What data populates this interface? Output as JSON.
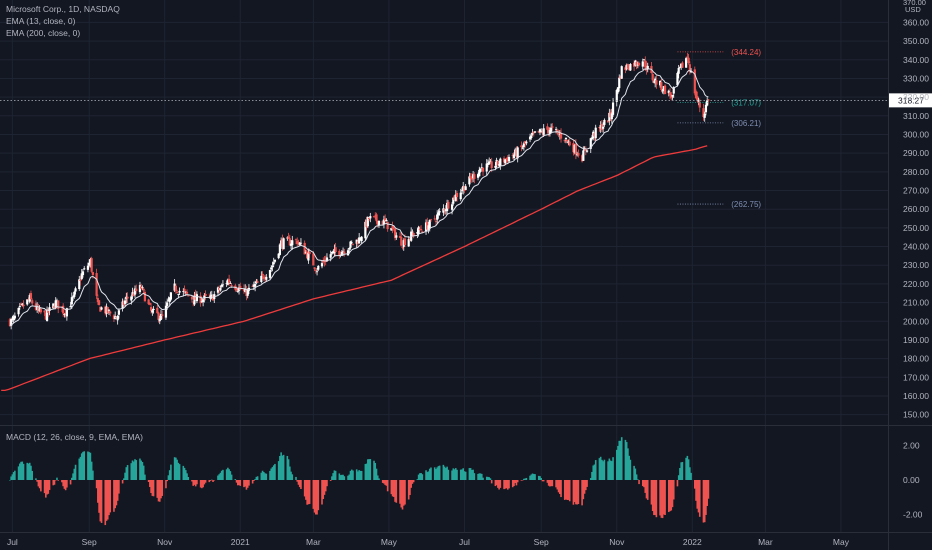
{
  "legend": {
    "title": "Microsoft Corp., 1D, NASDAQ",
    "ema_short": "EMA (13, close, 0)",
    "ema_long": "EMA (200, close, 0)",
    "macd": "MACD (12, 26, close, 9, EMA, EMA)"
  },
  "price_axis": {
    "currency": "USD",
    "top_partial": "370.00",
    "ticks": [
      "360.00",
      "350.00",
      "340.00",
      "330.00",
      "320.00",
      "310.00",
      "300.00",
      "290.00",
      "280.00",
      "270.00",
      "260.00",
      "250.00",
      "240.00",
      "230.00",
      "220.00",
      "210.00",
      "200.00",
      "190.00",
      "180.00",
      "170.00",
      "160.00",
      "150.00"
    ]
  },
  "macd_axis": {
    "ticks": [
      "2.00",
      "0.00",
      "-2.00"
    ]
  },
  "time_axis": {
    "labels": [
      "Jul",
      "Sep",
      "Nov",
      "2021",
      "Mar",
      "May",
      "Jul",
      "Sep",
      "Nov",
      "2022",
      "Mar",
      "May"
    ]
  },
  "last_price": {
    "label": "318.27",
    "value": 318.27
  },
  "levels": [
    {
      "label": "(344.24)",
      "value": 344.24,
      "color": "#ef5350"
    },
    {
      "label": "(317.07)",
      "value": 317.07,
      "color": "#26a69a"
    },
    {
      "label": "(306.21)",
      "value": 306.21,
      "color": "#7f8fb3"
    },
    {
      "label": "(262.75)",
      "value": 262.75,
      "color": "#7f8fb3"
    }
  ],
  "colors": {
    "background": "#131722",
    "up": "#ffffff",
    "down": "#ef5350",
    "ema_short": "#e0e3eb",
    "ema_long": "#ef3b3b",
    "hist_up": "#26a69a",
    "hist_down": "#ef5350",
    "grid": "#1f2433"
  },
  "chart_data": {
    "type": "candlestick",
    "symbol": "Microsoft Corp.",
    "interval": "1D",
    "exchange": "NASDAQ",
    "price_range": [
      145,
      372
    ],
    "macd_range": [
      -3,
      3
    ],
    "close_anchors": {
      "x": [
        "2020-07-01",
        "2020-07-08",
        "2020-07-15",
        "2020-07-22",
        "2020-07-28",
        "2020-08-05",
        "2020-08-12",
        "2020-08-19",
        "2020-08-26",
        "2020-09-02",
        "2020-09-08",
        "2020-09-16",
        "2020-09-23",
        "2020-10-01",
        "2020-10-13",
        "2020-10-21",
        "2020-10-30",
        "2020-11-09",
        "2020-11-24",
        "2020-12-08",
        "2020-12-22",
        "2021-01-05",
        "2021-01-15",
        "2021-01-27",
        "2021-02-03",
        "2021-02-16",
        "2021-02-25",
        "2021-03-04",
        "2021-03-15",
        "2021-03-25",
        "2021-04-07",
        "2021-04-15",
        "2021-04-28",
        "2021-05-12",
        "2021-05-21",
        "2021-06-03",
        "2021-06-14",
        "2021-06-28",
        "2021-07-14",
        "2021-07-27",
        "2021-08-12",
        "2021-08-27",
        "2021-09-08",
        "2021-09-20",
        "2021-10-04",
        "2021-10-13",
        "2021-10-21",
        "2021-10-27",
        "2021-11-05",
        "2021-11-15",
        "2021-11-22",
        "2021-11-30",
        "2021-12-08",
        "2021-12-16",
        "2021-12-20",
        "2021-12-28",
        "2022-01-04",
        "2022-01-10",
        "2022-01-13"
      ],
      "y": [
        200,
        207,
        212,
        205,
        203,
        210,
        205,
        212,
        225,
        232,
        208,
        205,
        202,
        212,
        218,
        205,
        202,
        218,
        212,
        212,
        222,
        215,
        220,
        230,
        242,
        243,
        235,
        228,
        236,
        238,
        244,
        255,
        253,
        242,
        247,
        252,
        260,
        270,
        282,
        284,
        290,
        300,
        303,
        298,
        288,
        300,
        305,
        310,
        335,
        338,
        340,
        330,
        325,
        320,
        332,
        342,
        320,
        310,
        318
      ]
    },
    "ema200_anchors": {
      "x": [
        "2020-06-26",
        "2020-09-01",
        "2020-11-01",
        "2021-01-04",
        "2021-03-01",
        "2021-05-03",
        "2021-07-01",
        "2021-09-01",
        "2021-10-01",
        "2021-11-01",
        "2021-12-01",
        "2022-01-03",
        "2022-01-13"
      ],
      "y": [
        163,
        180,
        190,
        200,
        212,
        222,
        240,
        260,
        270,
        278,
        288,
        292,
        294
      ]
    },
    "macd_histogram_range": [
      -2.7,
      2.2
    ],
    "last_close": 318.27
  }
}
